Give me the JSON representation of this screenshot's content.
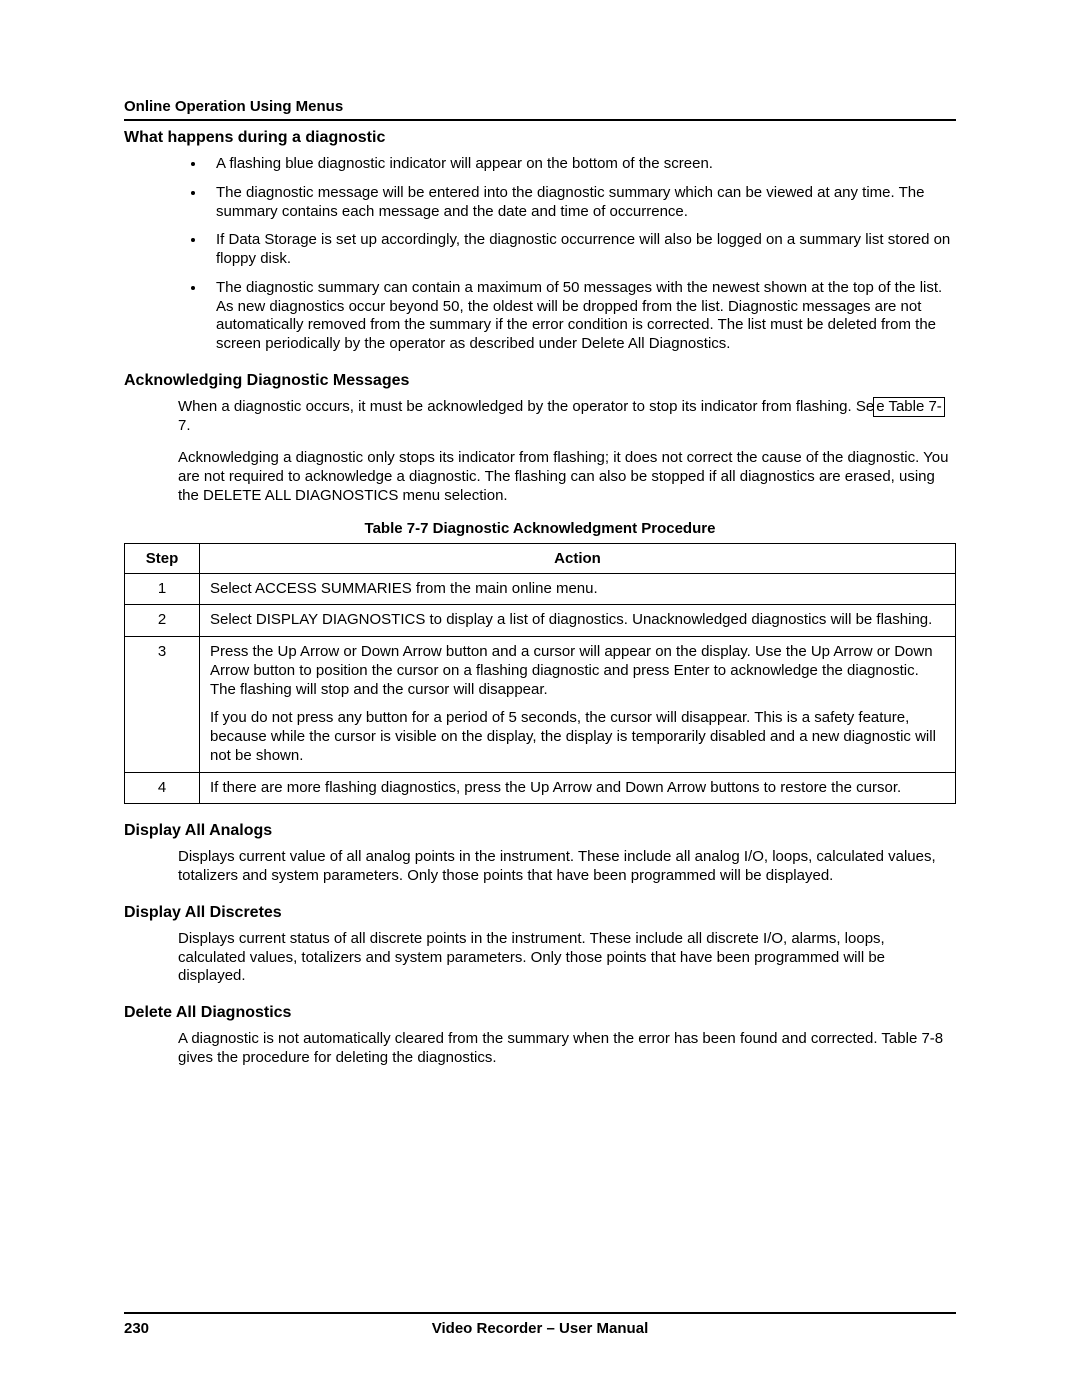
{
  "runningHeader": "Online Operation Using Menus",
  "sections": {
    "s1": {
      "title": "What happens during a diagnostic",
      "bullets": [
        "A flashing blue diagnostic indicator will appear on the bottom of the screen.",
        "The diagnostic message will be entered into the diagnostic summary which can be viewed at any time.  The summary contains each message and the date and time of occurrence.",
        "If Data Storage is set up accordingly, the diagnostic occurrence will also be logged on a summary list stored on floppy disk.",
        "The diagnostic summary can contain a maximum of 50 messages with the newest shown at the top of the list.  As new diagnostics occur beyond 50, the oldest will be dropped from the list.  Diagnostic messages are not automatically removed from the summary if the error condition is corrected.  The list must be deleted from the screen periodically by the operator as described under Delete All Diagnostics."
      ]
    },
    "s2": {
      "title": "Acknowledging Diagnostic Messages",
      "para1_pre": "When a diagnostic occurs, it must be acknowledged by the operator to stop its indicator from flashing.  Se",
      "para1_link": "e Table 7-",
      "para1_post": "7.",
      "para2": "Acknowledging a diagnostic only stops its indicator from flashing; it does not correct the cause of the diagnostic.  You are not required to acknowledge a diagnostic.  The flashing can also be stopped if all diagnostics are erased, using the DELETE ALL DIAGNOSTICS menu selection."
    },
    "tableCaption": "Table 7-7  Diagnostic Acknowledgment Procedure",
    "table": {
      "headers": {
        "step": "Step",
        "action": "Action"
      },
      "rows": [
        {
          "step": "1",
          "action": [
            "Select ACCESS SUMMARIES from the main online menu."
          ]
        },
        {
          "step": "2",
          "action": [
            "Select DISPLAY DIAGNOSTICS to display a list of diagnostics.  Unacknowledged diagnostics will be flashing."
          ]
        },
        {
          "step": "3",
          "action": [
            "Press the Up Arrow or Down Arrow button and a cursor will appear on the display.  Use the Up Arrow or Down Arrow button to position the cursor on a flashing diagnostic and press Enter to acknowledge the diagnostic.  The flashing will stop and the cursor will disappear.",
            "If you do not press any button for a period of 5 seconds, the cursor will disappear.  This is a safety feature, because while the cursor is visible on the display, the display is temporarily disabled and a new diagnostic will not be shown."
          ]
        },
        {
          "step": "4",
          "action": [
            "If there are more flashing diagnostics, press the Up Arrow and Down Arrow buttons to restore the cursor."
          ]
        }
      ]
    },
    "s3": {
      "title": "Display All Analogs",
      "para": "Displays current value of all analog points in the instrument.  These include all analog I/O, loops, calculated values, totalizers and system parameters.  Only those points that have been programmed will be displayed."
    },
    "s4": {
      "title": "Display All Discretes",
      "para": "Displays current status of all discrete points in the instrument.  These include all discrete I/O, alarms, loops, calculated values, totalizers and system parameters.  Only those points that have been programmed will be displayed."
    },
    "s5": {
      "title": "Delete All Diagnostics",
      "para": "A diagnostic is not automatically cleared from the summary when the error has been found and corrected.  Table 7-8 gives the procedure for deleting the diagnostics."
    }
  },
  "footer": {
    "pageNumber": "230",
    "centerText": "Video Recorder – User Manual"
  }
}
